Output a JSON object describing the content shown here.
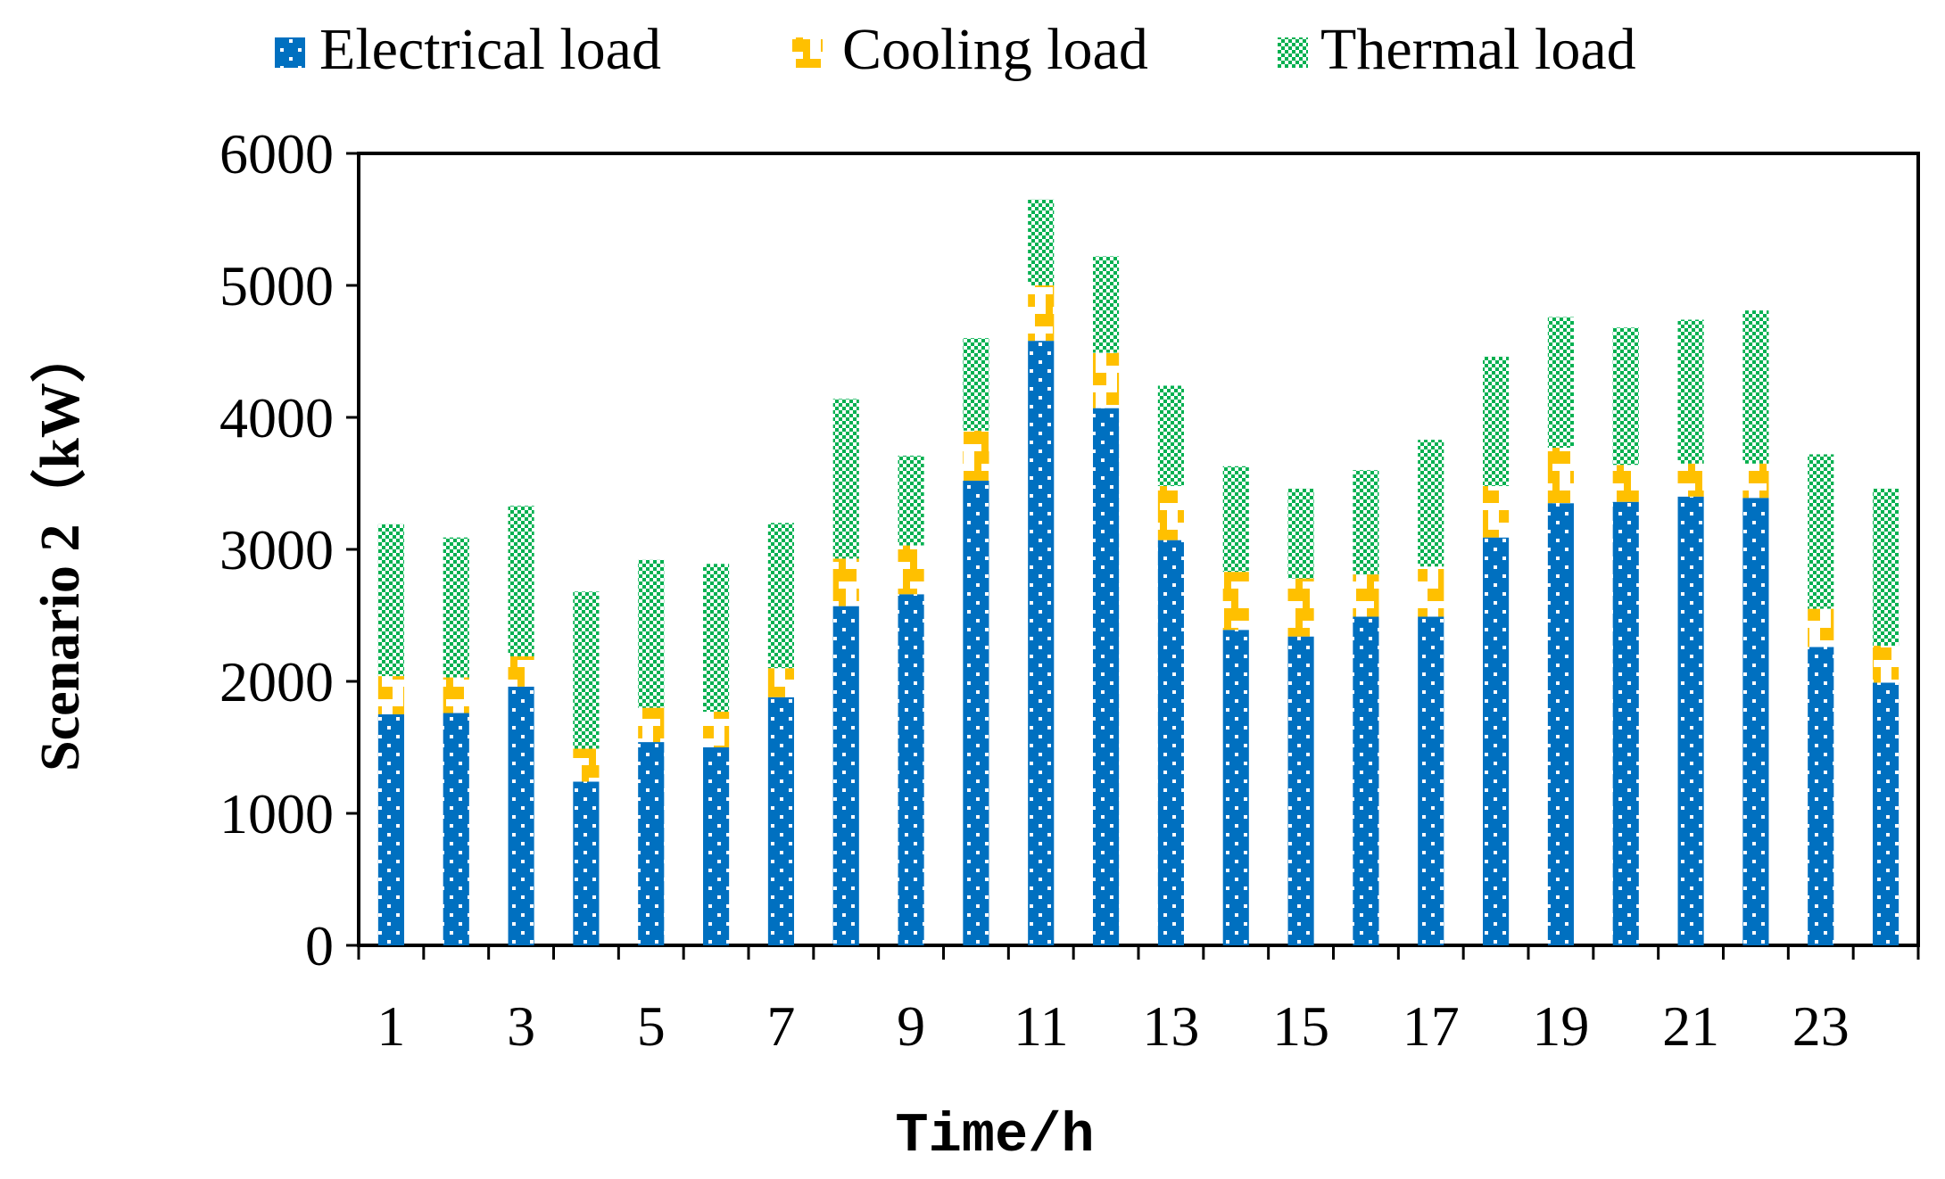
{
  "chart_data": {
    "type": "bar",
    "stacked": true,
    "xlabel": "Time/h",
    "ylabel": "Scenario 2（kW）",
    "ylim": [
      0,
      6000
    ],
    "yticks": [
      0,
      1000,
      2000,
      3000,
      4000,
      5000,
      6000
    ],
    "ytick_labels": [
      "0",
      "1000",
      "2000",
      "3000",
      "4000",
      "5000",
      "6000"
    ],
    "categories": [
      "1",
      "2",
      "3",
      "4",
      "5",
      "6",
      "7",
      "8",
      "9",
      "10",
      "11",
      "12",
      "13",
      "14",
      "15",
      "16",
      "17",
      "18",
      "19",
      "20",
      "21",
      "22",
      "23",
      "24"
    ],
    "xtick_labels": [
      "1",
      "3",
      "5",
      "7",
      "9",
      "11",
      "13",
      "15",
      "17",
      "19",
      "21",
      "23"
    ],
    "legend_position": "top",
    "series": [
      {
        "name": "Electrical load",
        "color": "#0070C0",
        "pattern": "white-dots",
        "values": [
          1750,
          1760,
          1960,
          1240,
          1540,
          1500,
          1880,
          2570,
          2660,
          3520,
          4580,
          4070,
          3070,
          2390,
          2340,
          2490,
          2490,
          3090,
          3350,
          3360,
          3400,
          3390,
          2260,
          1990
        ]
      },
      {
        "name": "Cooling load",
        "color": "#FFC000",
        "pattern": "brick",
        "values": [
          290,
          270,
          230,
          250,
          260,
          270,
          220,
          360,
          370,
          380,
          420,
          420,
          410,
          440,
          440,
          320,
          380,
          390,
          420,
          280,
          250,
          260,
          290,
          280
        ]
      },
      {
        "name": "Thermal load",
        "color": "#00B050",
        "pattern": "checker",
        "values": [
          1150,
          1060,
          1140,
          1190,
          1120,
          1120,
          1100,
          1210,
          680,
          700,
          650,
          730,
          760,
          800,
          680,
          790,
          960,
          980,
          990,
          1040,
          1090,
          1160,
          1170,
          1190
        ]
      }
    ]
  }
}
